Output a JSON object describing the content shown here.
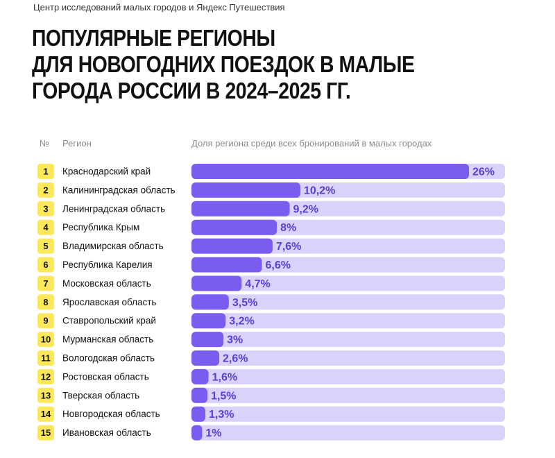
{
  "source": "Центр исследований малых городов и Яндекс Путешествия",
  "title_lines": [
    "ПОПУЛЯРНЫЕ РЕГИОНЫ",
    "ДЛЯ НОВОГОДНИХ ПОЕЗДОК В МАЛЫЕ",
    "ГОРОДА РОССИИ В 2024–2025 ГГ."
  ],
  "headers": {
    "rank": "№",
    "region": "Регион",
    "share": "Доля региона среди всех бронирований в малых городах"
  },
  "colors": {
    "rank_badge": "#fde85c",
    "track": "#d9d2fb",
    "bar": "#7b5cf0",
    "value_text": "#5a3fd4"
  },
  "chart_data": {
    "type": "bar",
    "orientation": "horizontal",
    "ranks": [
      1,
      2,
      3,
      4,
      5,
      6,
      7,
      8,
      9,
      10,
      11,
      12,
      13,
      14,
      15
    ],
    "categories": [
      "Краснодарский край",
      "Калининградская область",
      "Ленинградская область",
      "Республика Крым",
      "Владимирская область",
      "Республика Карелия",
      "Московская область",
      "Ярославская область",
      "Ставропольский край",
      "Мурманская область",
      "Вологодская область",
      "Ростовская область",
      "Тверская область",
      "Новгородская область",
      "Ивановская область"
    ],
    "values": [
      26,
      10.2,
      9.2,
      8,
      7.6,
      6.6,
      4.7,
      3.5,
      3.2,
      3,
      2.6,
      1.6,
      1.5,
      1.3,
      1
    ],
    "value_labels": [
      "26%",
      "10,2%",
      "9,2%",
      "8%",
      "7,6%",
      "6,6%",
      "4,7%",
      "3,5%",
      "3,2%",
      "3%",
      "2,6%",
      "1,6%",
      "1,5%",
      "1,3%",
      "1%"
    ],
    "unit": "%",
    "xlim": [
      0,
      26
    ]
  }
}
